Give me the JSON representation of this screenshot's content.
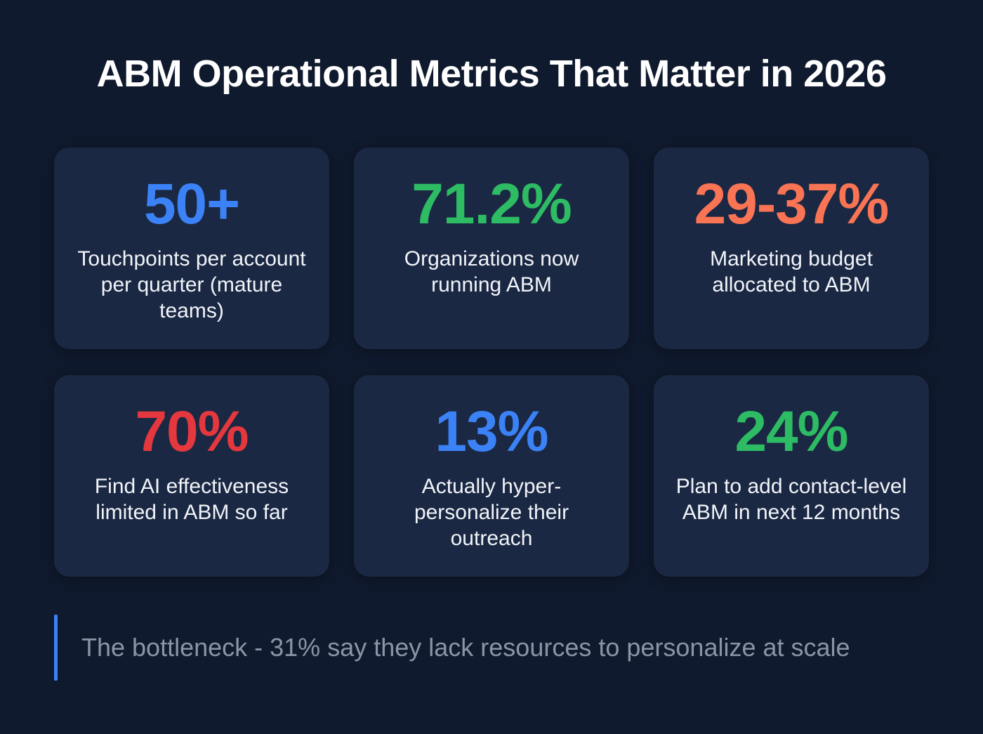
{
  "title": "ABM Operational Metrics That Matter in 2026",
  "metrics": [
    {
      "value": "50+",
      "label": "Touchpoints per account per quarter (mature teams)",
      "color": "#3b82f6"
    },
    {
      "value": "71.2%",
      "label": "Organizations now running ABM",
      "color": "#2dbb63"
    },
    {
      "value": "29-37%",
      "label": "Marketing budget allocated to ABM",
      "color": "#f97454"
    },
    {
      "value": "70%",
      "label": "Find AI effectiveness limited in ABM so far",
      "color": "#e5383e"
    },
    {
      "value": "13%",
      "label": "Actually hyper-personalize their outreach",
      "color": "#3b82f6"
    },
    {
      "value": "24%",
      "label": "Plan to add contact-level ABM in next 12 months",
      "color": "#2dbb63"
    }
  ],
  "footer": {
    "note": "The bottleneck - 31% say they lack resources to personalize at scale",
    "accent": "#3b82f6"
  }
}
